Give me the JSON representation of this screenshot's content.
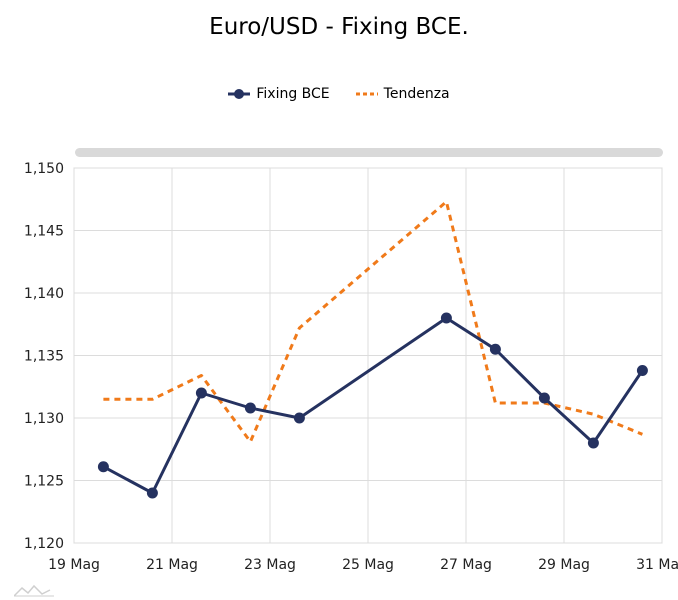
{
  "chart_data": {
    "type": "line",
    "title": "Euro/USD - Fixing BCE.",
    "xlabel": "",
    "ylabel": "",
    "legend_position": "top-center",
    "grid": true,
    "ylim": [
      1.12,
      1.15
    ],
    "yticks": [
      "1,120",
      "1,125",
      "1,130",
      "1,135",
      "1,140",
      "1,145",
      "1,150"
    ],
    "xlim": [
      0,
      12
    ],
    "xticks": [
      {
        "pos": 0,
        "label": "19 Mag"
      },
      {
        "pos": 2,
        "label": "21 Mag"
      },
      {
        "pos": 4,
        "label": "23 Mag"
      },
      {
        "pos": 6,
        "label": "25 Mag"
      },
      {
        "pos": 8,
        "label": "27 Mag"
      },
      {
        "pos": 10,
        "label": "29 Mag"
      },
      {
        "pos": 12,
        "label": "31 Mag"
      }
    ],
    "series": [
      {
        "name": "Fixing BCE",
        "color": "#253260",
        "style": "solid-markers",
        "x": [
          0.6,
          1.6,
          2.6,
          3.6,
          4.6,
          7.6,
          8.6,
          9.6,
          10.6,
          11.6
        ],
        "values": [
          1.1261,
          1.124,
          1.132,
          1.1308,
          1.13,
          1.138,
          1.1355,
          1.1316,
          1.128,
          1.1338
        ]
      },
      {
        "name": "Tendenza",
        "color": "#f07a1a",
        "style": "dashed",
        "x": [
          0.6,
          1.6,
          2.6,
          3.6,
          4.6,
          7.6,
          8.6,
          9.6,
          10.6,
          11.6
        ],
        "values": [
          1.1315,
          1.1315,
          1.1334,
          1.1281,
          1.1372,
          1.1473,
          1.1312,
          1.1312,
          1.1303,
          1.1287
        ]
      }
    ]
  }
}
